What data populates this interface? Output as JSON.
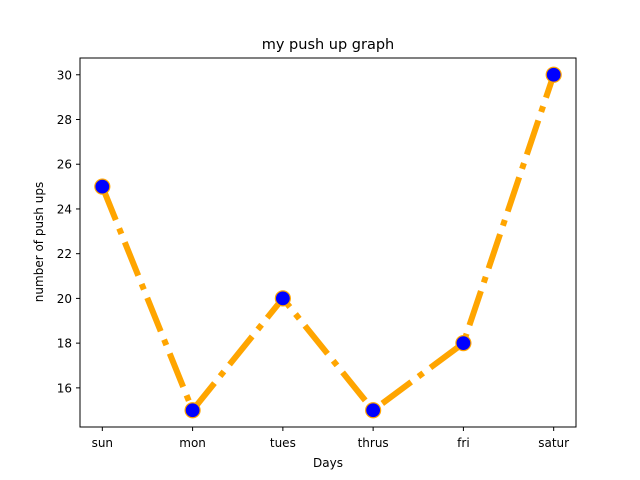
{
  "chart_data": {
    "type": "line",
    "title": "my push up graph",
    "xlabel": "Days",
    "ylabel": "number of push ups",
    "categories": [
      "sun",
      "mon",
      "tues",
      "thrus",
      "fri",
      "satur"
    ],
    "series": [
      {
        "values": [
          25,
          15,
          20,
          15,
          18,
          30
        ]
      }
    ],
    "ylim": [
      14.25,
      30.75
    ],
    "yticks": [
      16,
      18,
      20,
      22,
      24,
      26,
      28,
      30
    ],
    "grid": false,
    "line_style": "dashdot",
    "line_color": "#ffa500",
    "marker": "circle",
    "marker_face_color": "#0000ff",
    "marker_edge_color": "#ffa500"
  }
}
